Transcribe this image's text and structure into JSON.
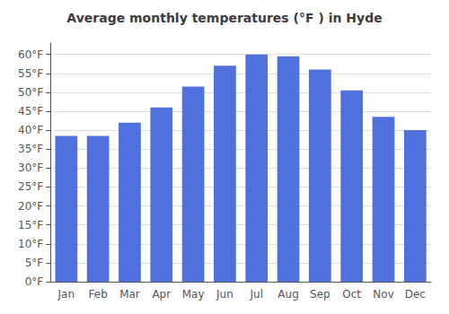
{
  "chart_data": {
    "type": "bar",
    "title": "Average monthly temperatures (°F ) in Hyde",
    "categories": [
      "Jan",
      "Feb",
      "Mar",
      "Apr",
      "May",
      "Jun",
      "Jul",
      "Aug",
      "Sep",
      "Oct",
      "Nov",
      "Dec"
    ],
    "values": [
      38.5,
      38.5,
      42.0,
      46.0,
      51.5,
      57.0,
      60.0,
      59.5,
      56.0,
      50.5,
      43.5,
      40.0
    ],
    "ylim": [
      0,
      63
    ],
    "yticks": [
      {
        "value": 0,
        "label": "0°F"
      },
      {
        "value": 5,
        "label": "5°F"
      },
      {
        "value": 10,
        "label": "10°F"
      },
      {
        "value": 15,
        "label": "15°F"
      },
      {
        "value": 20,
        "label": "20°F"
      },
      {
        "value": 25,
        "label": "25°F"
      },
      {
        "value": 30,
        "label": "30°F"
      },
      {
        "value": 35,
        "label": "35°F"
      },
      {
        "value": 40,
        "label": "40°F"
      },
      {
        "value": 45,
        "label": "45°F"
      },
      {
        "value": 50,
        "label": "50°F"
      },
      {
        "value": 55,
        "label": "55°F"
      },
      {
        "value": 60,
        "label": "60°F"
      }
    ],
    "grid": true
  }
}
